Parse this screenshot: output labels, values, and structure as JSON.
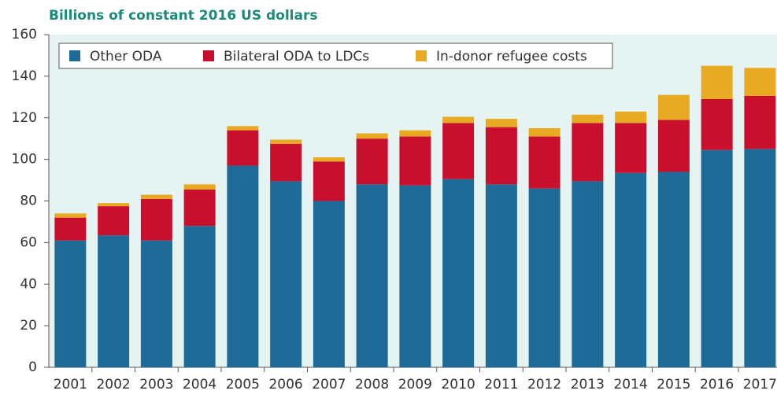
{
  "chart_data": {
    "type": "stacked_bar",
    "title": "Billions of constant 2016 US dollars",
    "categories": [
      "2001",
      "2002",
      "2003",
      "2004",
      "2005",
      "2006",
      "2007",
      "2008",
      "2009",
      "2010",
      "2011",
      "2012",
      "2013",
      "2014",
      "2015",
      "2016",
      "2017"
    ],
    "series": [
      {
        "name": "Other ODA",
        "color": "#1f6b98",
        "values": [
          61,
          63.5,
          61,
          68,
          97,
          89.5,
          80,
          88,
          87.5,
          90.5,
          88,
          86,
          89.5,
          93.5,
          94,
          104.5,
          105
        ]
      },
      {
        "name": "Bilateral ODA to LDCs",
        "color": "#c8102e",
        "values": [
          11,
          14,
          20,
          17.5,
          17,
          18,
          19,
          22,
          23.5,
          27,
          27.5,
          25,
          28,
          24,
          25,
          24.5,
          25.5
        ]
      },
      {
        "name": "In-donor refugee costs",
        "color": "#e8aa22",
        "values": [
          2,
          1.5,
          2,
          2.5,
          2,
          2,
          2,
          2.5,
          3,
          3,
          4,
          4,
          4,
          5.5,
          12,
          16,
          13.5
        ]
      }
    ],
    "ylim": [
      0,
      160
    ],
    "yticks": [
      0,
      20,
      40,
      60,
      80,
      100,
      120,
      140,
      160
    ],
    "legend": "top-left"
  }
}
